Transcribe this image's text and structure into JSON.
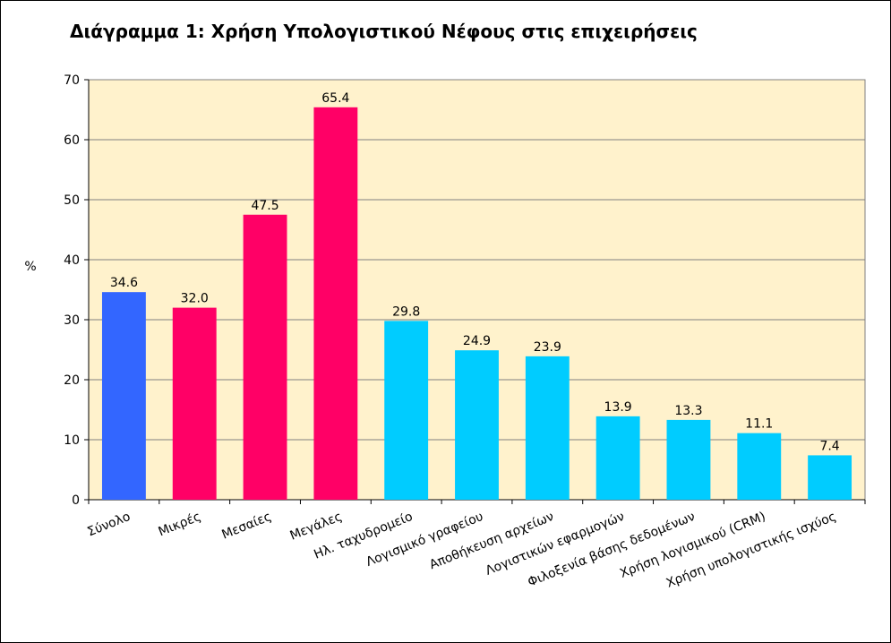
{
  "chart_data": {
    "type": "bar",
    "title": "Διάγραμμα 1: Χρήση Υπολογιστικού Νέφους στις επιχειρήσεις",
    "xlabel": "",
    "ylabel": "%",
    "ylim": [
      0,
      70
    ],
    "ytick_step": 10,
    "grid": true,
    "legend": "none",
    "plot_background": "#FFF2CC",
    "categories": [
      "Σύνολο",
      "Μικρές",
      "Μεσαίες",
      "Μεγάλες",
      "Ηλ. ταχυδρομείο",
      "Λογισμικό γραφείου",
      "Αποθήκευση αρχείων",
      "Λογιστικών εφαρμογών",
      "Φιλοξενία βάσης δεδομένων",
      "Χρήση λογισμικού (CRM)",
      "Χρήση υπολογιστικής ισχύος"
    ],
    "values": [
      34.6,
      32.0,
      47.5,
      65.4,
      29.8,
      24.9,
      23.9,
      13.9,
      13.3,
      11.1,
      7.4
    ],
    "value_labels": [
      "34.6",
      "32.0",
      "47.5",
      "65.4",
      "29.8",
      "24.9",
      "23.9",
      "13.9",
      "13.3",
      "11.1",
      "7.4"
    ],
    "colors": [
      "#3366FF",
      "#FF0066",
      "#FF0066",
      "#FF0066",
      "#00CCFF",
      "#00CCFF",
      "#00CCFF",
      "#00CCFF",
      "#00CCFF",
      "#00CCFF",
      "#00CCFF"
    ]
  }
}
